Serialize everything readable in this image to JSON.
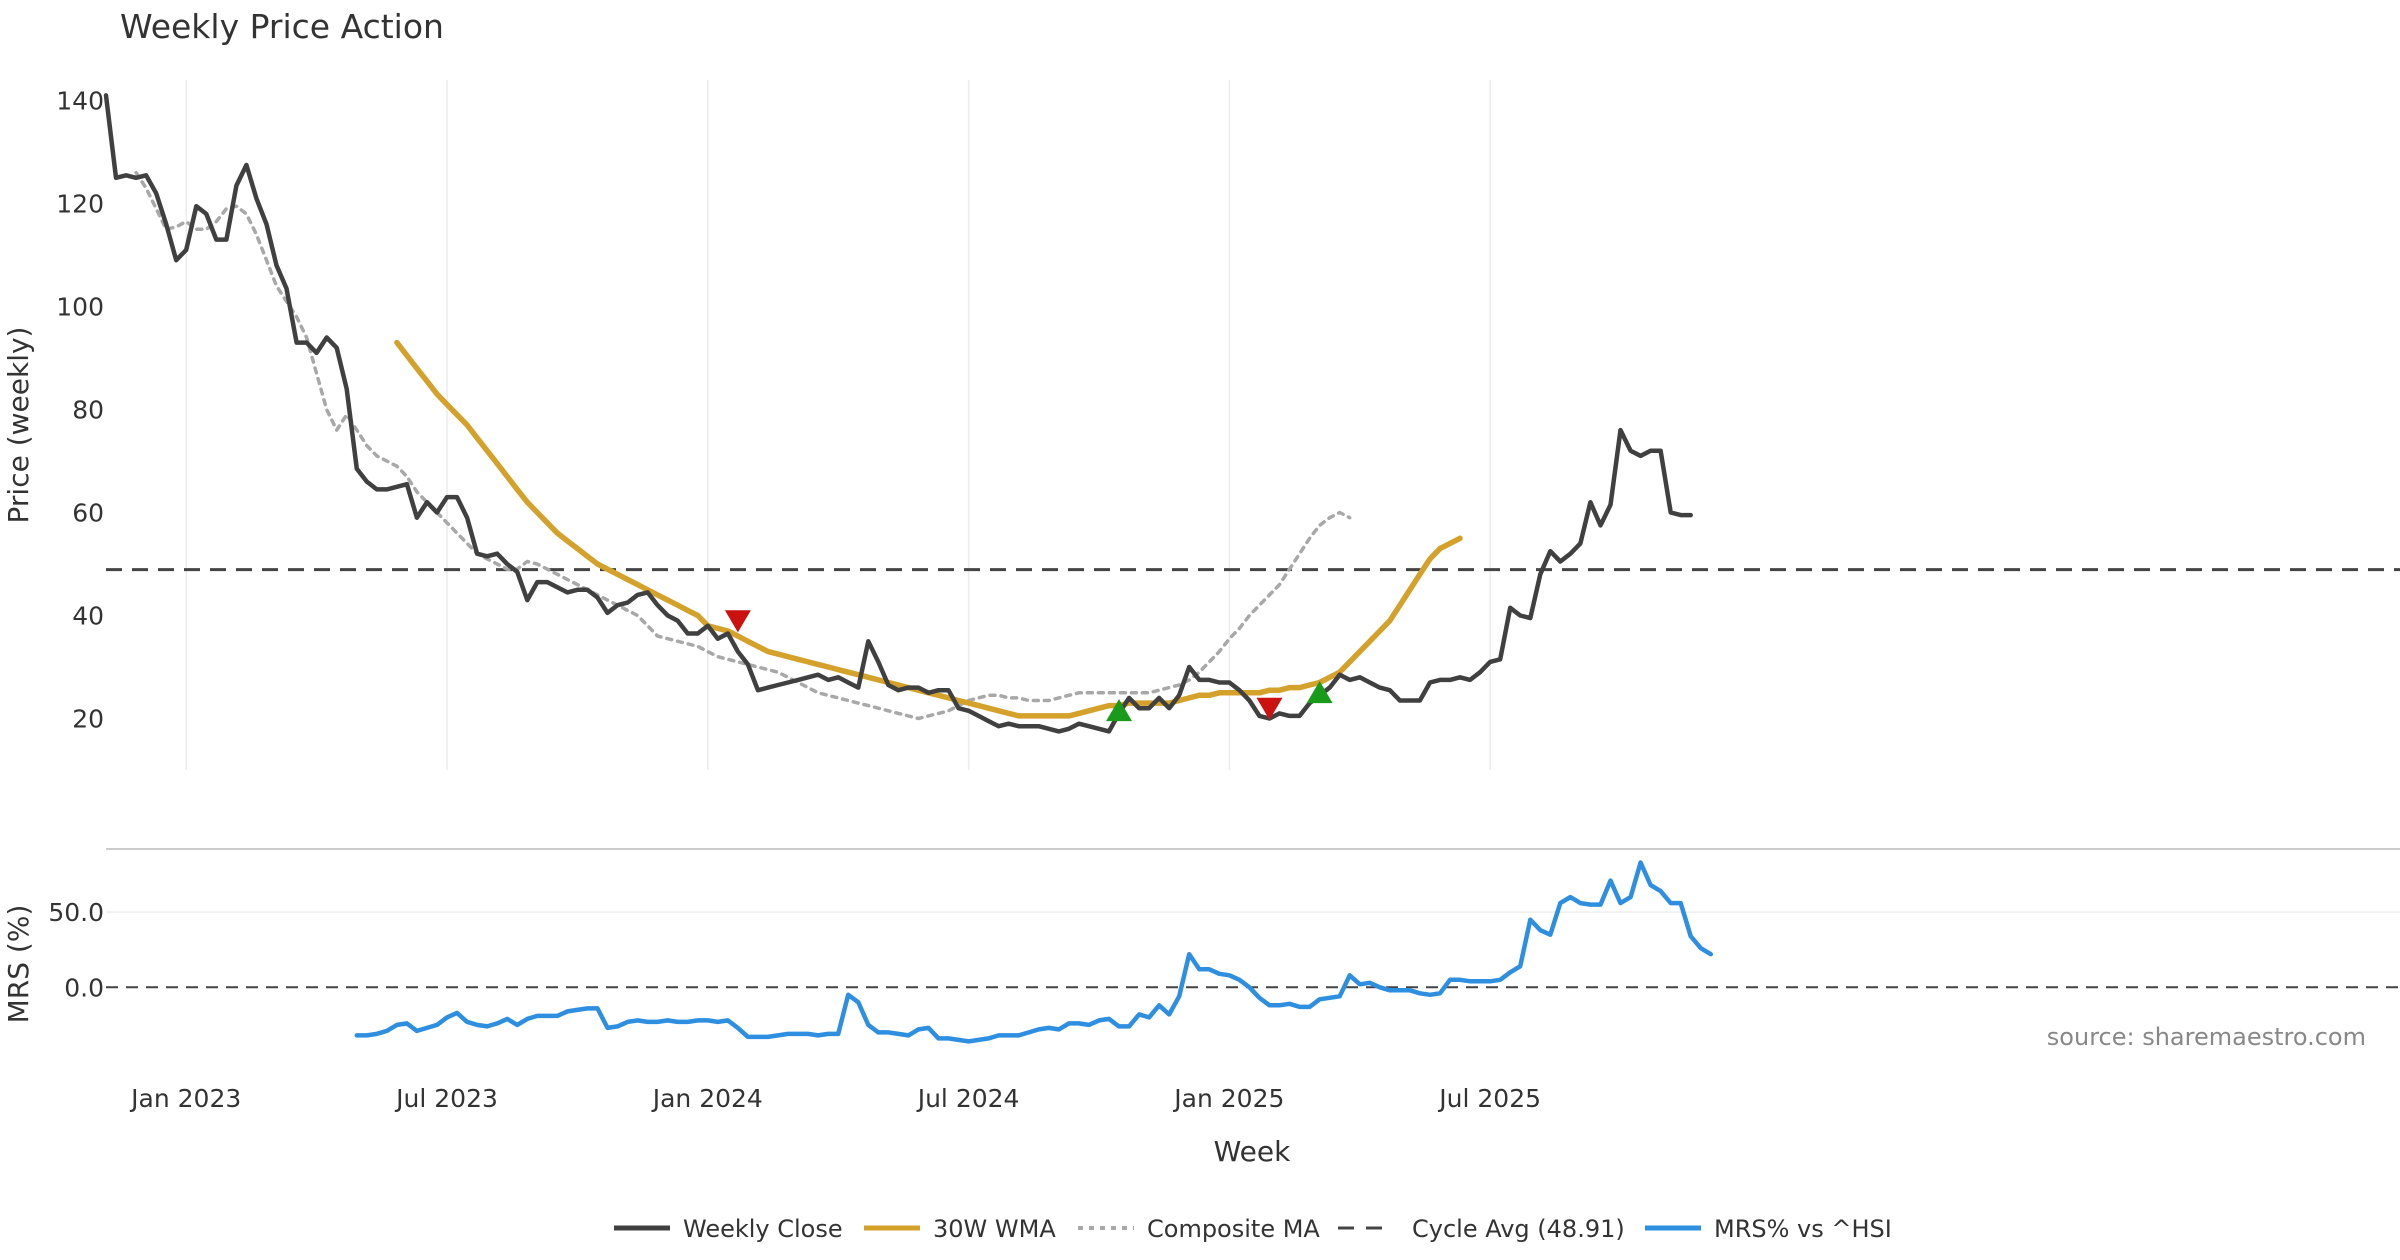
{
  "chart_data": {
    "type": "line",
    "title": "Weekly Price Action",
    "xlabel": "Week",
    "source": "source: sharemaestro.com",
    "x_ticks": [
      "Jan 2023",
      "Jul 2023",
      "Jan 2024",
      "Jul 2024",
      "Jan 2025",
      "Jul 2025"
    ],
    "x_tick_weeks": [
      8,
      34,
      60,
      86,
      112,
      138
    ],
    "legend": [
      "Weekly Close",
      "30W WMA",
      "Composite MA",
      "Cycle Avg (48.91)",
      "MRS% vs ^HSI"
    ],
    "price_panel": {
      "ylabel": "Price (weekly)",
      "ylim": [
        10,
        144
      ],
      "yticks": [
        "20",
        "40",
        "60",
        "80",
        "100",
        "120",
        "140"
      ],
      "cycle_avg": 48.91,
      "series": [
        {
          "name": "Weekly Close",
          "color": "#404040",
          "values": [
            141,
            125,
            125.5,
            125,
            125.5,
            122,
            116,
            109,
            111,
            119.5,
            118,
            113,
            113,
            123.5,
            127.5,
            121,
            116,
            108,
            103.5,
            93,
            93,
            91,
            94,
            92,
            84,
            68.5,
            66,
            64.5,
            64.5,
            65,
            65.5,
            59,
            62,
            60,
            63,
            63,
            59,
            52,
            51.5,
            52,
            50,
            48.5,
            43,
            46.5,
            46.5,
            45.5,
            44.5,
            45,
            45,
            43.5,
            40.5,
            42,
            42.5,
            44,
            44.5,
            42,
            40,
            39,
            36.5,
            36.5,
            38,
            35.5,
            36.5,
            33,
            30.5,
            25.5,
            26,
            26.5,
            27,
            27.5,
            28,
            28.5,
            27.5,
            28,
            27,
            26,
            35,
            31,
            26.5,
            25.5,
            26,
            26,
            25,
            25.5,
            25.5,
            22,
            21.5,
            20.5,
            19.5,
            18.5,
            19,
            18.5,
            18.5,
            18.5,
            18,
            17.5,
            18,
            19,
            18.5,
            18,
            17.5,
            21,
            24,
            22,
            22,
            24,
            22,
            24.5,
            30,
            27.5,
            27.5,
            27,
            27,
            25.5,
            23.5,
            20.5,
            20,
            21,
            20.5,
            20.5,
            23,
            24.5,
            26,
            28.5,
            27.5,
            28,
            27,
            26,
            25.5,
            23.5,
            23.5,
            23.5,
            27,
            27.5,
            27.5,
            28,
            27.5,
            29,
            31,
            31.5,
            41.5,
            40,
            39.5,
            48,
            52.5,
            50.5,
            52,
            54,
            62,
            57.5,
            61.5,
            76,
            72,
            71,
            72,
            72,
            60,
            59.5,
            59.5
          ]
        },
        {
          "name": "30W WMA",
          "color": "#D4A12A",
          "start": 29,
          "values": [
            93,
            90.5,
            88,
            85.5,
            83,
            81,
            79,
            77,
            74.5,
            72,
            69.5,
            67,
            64.5,
            62,
            60,
            58,
            56,
            54.5,
            53,
            51.5,
            50,
            49,
            48,
            47,
            46,
            45,
            44,
            43,
            42,
            41,
            40,
            38,
            37.5,
            37,
            36,
            35,
            34,
            33,
            32.5,
            32,
            31.5,
            31,
            30.5,
            30,
            29.5,
            29,
            28.5,
            28,
            27.5,
            27,
            26.5,
            26,
            25.5,
            25,
            24.5,
            24,
            23.5,
            23,
            22.5,
            22,
            21.5,
            21,
            20.5,
            20.5,
            20.5,
            20.5,
            20.5,
            20.5,
            21,
            21.5,
            22,
            22.5,
            22.5,
            23,
            23,
            23,
            23,
            23,
            23.5,
            24,
            24.5,
            24.5,
            25,
            25,
            25,
            25,
            25,
            25.5,
            25.5,
            26,
            26,
            26.5,
            27,
            28,
            29,
            31,
            33,
            35,
            37,
            39,
            42,
            45,
            48,
            51,
            53,
            54,
            55
          ]
        },
        {
          "name": "Composite MA",
          "color": "#A8A8A8",
          "dash": true,
          "start": 3,
          "values": [
            126,
            123,
            119,
            115,
            115.5,
            116.5,
            115,
            115,
            116.5,
            119,
            119.5,
            118,
            114,
            109,
            104,
            101,
            98,
            94,
            87,
            80,
            76,
            79,
            76,
            73,
            71,
            70,
            69,
            67,
            64,
            62,
            60,
            58,
            56,
            54,
            52,
            51,
            50,
            49,
            49,
            50.5,
            50,
            49,
            48,
            47,
            46,
            45,
            44,
            43,
            42,
            41,
            40,
            38,
            36,
            35.5,
            35,
            34.5,
            34,
            33,
            32,
            31.5,
            31,
            30.5,
            30,
            29.5,
            29,
            28,
            27,
            26,
            25,
            24.5,
            24,
            23.5,
            23,
            22.5,
            22,
            21.5,
            21,
            20.5,
            20,
            20.5,
            21,
            21.5,
            22.5,
            23.5,
            24,
            24.5,
            24.5,
            24,
            24,
            23.5,
            23.5,
            23.5,
            24,
            24.5,
            25,
            25,
            25,
            25,
            25,
            25,
            25,
            25,
            25.5,
            26,
            26.5,
            27.5,
            29,
            31,
            33,
            35.5,
            37.5,
            40,
            42,
            44,
            46,
            49,
            52,
            55,
            57.5,
            59,
            60,
            59
          ]
        }
      ],
      "markers": [
        {
          "type": "down",
          "color": "#CC1111",
          "week": 63,
          "value": 39
        },
        {
          "type": "up",
          "color": "#1A9A1A",
          "week": 101,
          "value": 21.5
        },
        {
          "type": "down",
          "color": "#CC1111",
          "week": 116,
          "value": 22
        },
        {
          "type": "up",
          "color": "#1A9A1A",
          "week": 121,
          "value": 25
        }
      ]
    },
    "mrs_panel": {
      "ylabel": "MRS (%)",
      "ylim": [
        -55,
        88
      ],
      "yticks": [
        "0.0",
        "50.0"
      ],
      "zero_line": 0,
      "series": [
        {
          "name": "MRS% vs ^HSI",
          "color": "#2E8FE0",
          "start": 25,
          "values": [
            -32,
            -32,
            -31,
            -29,
            -25,
            -24,
            -29,
            -27,
            -25,
            -20,
            -17,
            -23,
            -25,
            -26,
            -24,
            -21,
            -25,
            -21,
            -19,
            -19,
            -19,
            -16,
            -15,
            -14,
            -14,
            -27,
            -26,
            -23,
            -22,
            -23,
            -23,
            -22,
            -23,
            -23,
            -22,
            -22,
            -23,
            -22,
            -27,
            -33,
            -33,
            -33,
            -32,
            -31,
            -31,
            -31,
            -32,
            -31,
            -31,
            -5,
            -10,
            -25,
            -30,
            -30,
            -31,
            -32,
            -28,
            -27,
            -34,
            -34,
            -35,
            -36,
            -35,
            -34,
            -32,
            -32,
            -32,
            -30,
            -28,
            -27,
            -28,
            -24,
            -24,
            -25,
            -22,
            -21,
            -26,
            -26,
            -18,
            -20,
            -12,
            -18,
            -6,
            22,
            12,
            12,
            9,
            8,
            5,
            0,
            -7,
            -12,
            -12,
            -11,
            -13,
            -13,
            -8,
            -7,
            -6,
            8,
            2,
            3,
            0,
            -2,
            -2,
            -2,
            -4,
            -5,
            -4,
            5,
            5,
            4,
            4,
            4,
            5,
            10,
            14,
            45,
            38,
            35,
            56,
            60,
            56,
            55,
            55,
            71,
            56,
            60,
            83,
            68,
            64,
            56,
            56,
            34,
            26,
            22
          ]
        }
      ]
    }
  }
}
